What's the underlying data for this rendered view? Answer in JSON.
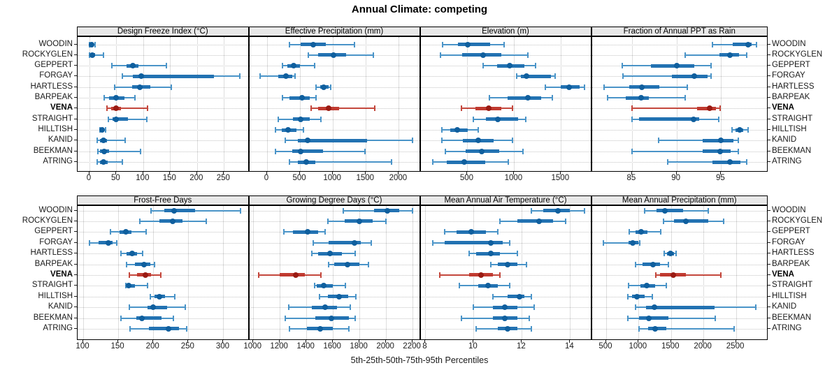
{
  "title": "Annual Climate: competing",
  "footer": "5th-25th-50th-75th-95th Percentiles",
  "percentiles": [
    5,
    25,
    50,
    75,
    95
  ],
  "sites": [
    "WOODIN",
    "ROCKYGLEN",
    "GEPPERT",
    "FORGAY",
    "HARTLESS",
    "BARPEAK",
    "VENA",
    "STRAIGHT",
    "HILLTISH",
    "KANID",
    "BEEKMAN",
    "ATRING"
  ],
  "highlight_site": "VENA",
  "colors": {
    "blue_whisker": "#4a94c8",
    "blue_iqr": "#2272b2",
    "blue_dot": "#0f5f9e",
    "red_whisker": "#c4473c",
    "red_iqr": "#c03a30",
    "red_dot": "#9a1b13",
    "gridline": "#c4c4c4",
    "strip_bg": "#e8e8e8",
    "border": "#000000"
  },
  "chart_data": [
    {
      "type": "dot-interval",
      "title": "Design Freeze Index (°C)",
      "xlim": [
        -22,
        297
      ],
      "ticks": [
        0,
        50,
        100,
        150,
        200,
        250
      ],
      "rows": [
        [
          0,
          1,
          4,
          8,
          10
        ],
        [
          0,
          1,
          5,
          10,
          26
        ],
        [
          42,
          69,
          81,
          91,
          143
        ],
        [
          61,
          81,
          96,
          231,
          280
        ],
        [
          47,
          80,
          93,
          113,
          152
        ],
        [
          27,
          37,
          49,
          65,
          84
        ],
        [
          33,
          41,
          50,
          59,
          108
        ],
        [
          35,
          43,
          49,
          71,
          107
        ],
        [
          19,
          21,
          24,
          28,
          30
        ],
        [
          14,
          19,
          26,
          33,
          67
        ],
        [
          16,
          20,
          28,
          37,
          95
        ],
        [
          14,
          19,
          26,
          34,
          61
        ]
      ]
    },
    {
      "type": "dot-interval",
      "title": "Effective Precipitation (mm)",
      "xlim": [
        -270,
        2330
      ],
      "ticks": [
        0,
        500,
        1000,
        1500,
        2000
      ],
      "rows": [
        [
          345,
          505,
          705,
          895,
          1325
        ],
        [
          630,
          770,
          1010,
          1200,
          1610
        ],
        [
          230,
          310,
          400,
          500,
          725
        ],
        [
          -110,
          175,
          290,
          380,
          425
        ],
        [
          740,
          805,
          860,
          930,
          970
        ],
        [
          230,
          345,
          530,
          645,
          740
        ],
        [
          670,
          770,
          930,
          1090,
          1640
        ],
        [
          175,
          395,
          515,
          645,
          820
        ],
        [
          130,
          220,
          315,
          450,
          550
        ],
        [
          280,
          470,
          620,
          1520,
          2210
        ],
        [
          130,
          380,
          505,
          845,
          1485
        ],
        [
          335,
          470,
          595,
          735,
          1890
        ]
      ]
    },
    {
      "type": "dot-interval",
      "title": "Elevation (m)",
      "xlim": [
        0,
        1830
      ],
      "ticks": [
        500,
        1000,
        1500
      ],
      "rows": [
        [
          235,
          400,
          505,
          745,
          890
        ],
        [
          210,
          445,
          665,
          860,
          1150
        ],
        [
          670,
          815,
          950,
          1110,
          1225
        ],
        [
          1030,
          1070,
          1135,
          1390,
          1435
        ],
        [
          1330,
          1500,
          1590,
          1700,
          1750
        ],
        [
          735,
          930,
          1145,
          1290,
          1410
        ],
        [
          440,
          590,
          730,
          865,
          985
        ],
        [
          565,
          700,
          825,
          1040,
          1125
        ],
        [
          230,
          317,
          392,
          505,
          617
        ],
        [
          230,
          455,
          617,
          780,
          980
        ],
        [
          267,
          480,
          655,
          842,
          1092
        ],
        [
          130,
          280,
          467,
          692,
          937
        ]
      ]
    },
    {
      "type": "dot-interval",
      "title": "Fraction of Annual PPT as Rain",
      "xlim": [
        80.5,
        100.3
      ],
      "ticks": [
        85,
        90,
        95
      ],
      "rows": [
        [
          94,
          96.3,
          98,
          98.4,
          99
        ],
        [
          91,
          94.8,
          96,
          97,
          97.9
        ],
        [
          83.9,
          87.1,
          90,
          92,
          93.9
        ],
        [
          84,
          89.5,
          92,
          93.5,
          93.9
        ],
        [
          81.9,
          84.7,
          86.1,
          88.1,
          91.2
        ],
        [
          82.3,
          84.3,
          86,
          86.9,
          91
        ],
        [
          85,
          92.3,
          93.7,
          94.4,
          94.9
        ],
        [
          85,
          85.8,
          91.9,
          92.5,
          94.7
        ],
        [
          96.2,
          96.6,
          97.1,
          97.5,
          98
        ],
        [
          88,
          92.9,
          95,
          96.4,
          96.9
        ],
        [
          85,
          92.9,
          94.9,
          96.1,
          96.9
        ],
        [
          89,
          94,
          96,
          97.2,
          97.9
        ]
      ]
    },
    {
      "type": "dot-interval",
      "title": "Frost-Free Days",
      "xlim": [
        92,
        337
      ],
      "ticks": [
        100,
        150,
        200,
        250,
        300
      ],
      "rows": [
        [
          197,
          216,
          230,
          260,
          325
        ],
        [
          181,
          209,
          228,
          242,
          276
        ],
        [
          139,
          152,
          161,
          169,
          190
        ],
        [
          109,
          122,
          136,
          142,
          148
        ],
        [
          154,
          162,
          170,
          177,
          185
        ],
        [
          162,
          174,
          187,
          196,
          202
        ],
        [
          166,
          177,
          189,
          197,
          211
        ],
        [
          161,
          163,
          165,
          174,
          192
        ],
        [
          196,
          202,
          209,
          217,
          231
        ],
        [
          166,
          192,
          200,
          220,
          246
        ],
        [
          154,
          176,
          184,
          212,
          229
        ],
        [
          167,
          194,
          222,
          237,
          248
        ]
      ]
    },
    {
      "type": "dot-interval",
      "title": "Growing Degree Days (°C)",
      "xlim": [
        970,
        2260
      ],
      "ticks": [
        1000,
        1200,
        1400,
        1600,
        1800,
        2000,
        2200
      ],
      "rows": [
        [
          1680,
          1910,
          2010,
          2100,
          2200
        ],
        [
          1560,
          1690,
          1800,
          1900,
          2000
        ],
        [
          1230,
          1300,
          1410,
          1490,
          1540
        ],
        [
          1450,
          1570,
          1760,
          1810,
          1890
        ],
        [
          1440,
          1490,
          1580,
          1670,
          1770
        ],
        [
          1570,
          1610,
          1710,
          1800,
          1870
        ],
        [
          1040,
          1200,
          1320,
          1390,
          1510
        ],
        [
          1460,
          1480,
          1530,
          1600,
          1695
        ],
        [
          1500,
          1560,
          1645,
          1715,
          1775
        ],
        [
          1270,
          1440,
          1540,
          1630,
          1730
        ],
        [
          1240,
          1470,
          1590,
          1720,
          1770
        ],
        [
          1275,
          1405,
          1505,
          1600,
          1720
        ]
      ]
    },
    {
      "type": "dot-interval",
      "title": "Mean Annual Air Temperature (°C)",
      "xlim": [
        7.8,
        14.9
      ],
      "ticks": [
        8,
        10,
        12,
        14
      ],
      "rows": [
        [
          12.4,
          12.9,
          13.5,
          14.0,
          14.6
        ],
        [
          11.1,
          11.8,
          12.7,
          13.3,
          13.8
        ],
        [
          8.8,
          9.3,
          9.9,
          10.5,
          11.0
        ],
        [
          8.3,
          8.8,
          10.7,
          11.2,
          11.5
        ],
        [
          9.8,
          10.1,
          10.7,
          11.1,
          11.8
        ],
        [
          10.7,
          11.0,
          11.4,
          11.8,
          12.2
        ],
        [
          8.6,
          9.8,
          10.3,
          10.8,
          11.1
        ],
        [
          9.4,
          10.2,
          10.6,
          11.0,
          11.5
        ],
        [
          10.8,
          11.4,
          11.9,
          12.1,
          12.4
        ],
        [
          10.0,
          10.8,
          11.3,
          11.8,
          12.5
        ],
        [
          9.5,
          10.8,
          11.3,
          11.8,
          12.3
        ],
        [
          10.1,
          11.0,
          11.4,
          11.8,
          12.4
        ]
      ]
    },
    {
      "type": "dot-interval",
      "title": "Mean Annual Precipitation (mm)",
      "xlim": [
        280,
        3000
      ],
      "ticks": [
        500,
        1000,
        1500,
        2000,
        2500
      ],
      "rows": [
        [
          1090,
          1275,
          1410,
          1690,
          2070
        ],
        [
          1385,
          1550,
          1725,
          2070,
          2315
        ],
        [
          860,
          950,
          1040,
          1140,
          1340
        ],
        [
          455,
          845,
          915,
          1000,
          1015
        ],
        [
          1400,
          1440,
          1495,
          1550,
          1575
        ],
        [
          955,
          1060,
          1225,
          1330,
          1460
        ],
        [
          1270,
          1335,
          1530,
          1730,
          2270
        ],
        [
          850,
          1025,
          1125,
          1260,
          1430
        ],
        [
          830,
          900,
          980,
          1095,
          1210
        ],
        [
          955,
          1115,
          1245,
          2170,
          2805
        ],
        [
          830,
          1005,
          1155,
          1460,
          2180
        ],
        [
          1010,
          1150,
          1260,
          1430,
          2475
        ]
      ]
    }
  ]
}
